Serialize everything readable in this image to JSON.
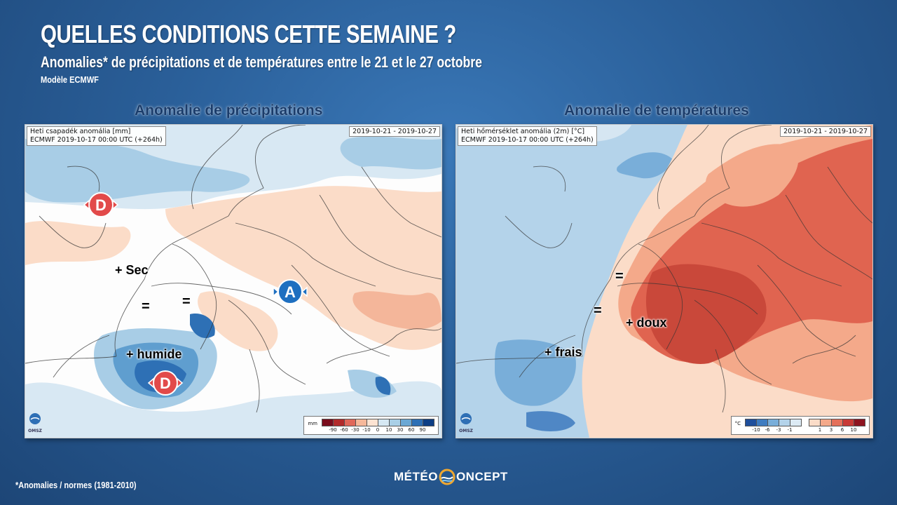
{
  "header": {
    "title": "QUELLES CONDITIONS CETTE SEMAINE ?",
    "subtitle": "Anomalies* de précipitations et de températures entre le 21 et le 27 octobre",
    "model": "Modèle ECMWF"
  },
  "precip_panel": {
    "title": "Anomalie de précipitations",
    "info_line1": "Heti csapadék anomália [mm]",
    "info_line2": "ECMWF 2019-10-17 00:00 UTC (+264h)",
    "dates": "2019-10-21 - 2019-10-27",
    "legend_unit": "mm",
    "legend_values": [
      "-90",
      "-60",
      "-30",
      "-10",
      "0",
      "10",
      "30",
      "60",
      "90"
    ],
    "legend_colors": [
      "#7a0c1c",
      "#b22a2a",
      "#e0685a",
      "#f6b89a",
      "#fde3d2",
      "#d6e8f3",
      "#a9cfe6",
      "#6ca8d4",
      "#2e70b5",
      "#0d3e85"
    ],
    "annotations": {
      "sec": "+ Sec",
      "humide": "+ humide",
      "eq1": "=",
      "eq2": "="
    },
    "pressure_systems": [
      {
        "type": "low",
        "letter": "D",
        "color": "#e24a4a"
      },
      {
        "type": "high",
        "letter": "A",
        "color": "#1e6fc0"
      },
      {
        "type": "low",
        "letter": "D",
        "color": "#e24a4a"
      }
    ],
    "omsz_label": "OMSZ"
  },
  "temp_panel": {
    "title": "Anomalie de températures",
    "info_line1": "Heti hőmérséklet anomália (2m) [°C]",
    "info_line2": "ECMWF 2019-10-17 00:00 UTC (+264h)",
    "dates": "2019-10-21 - 2019-10-27",
    "legend_unit": "°C",
    "legend_values_cold": [
      "-10",
      "-6",
      "-3",
      "-1"
    ],
    "legend_values_warm": [
      "1",
      "3",
      "6",
      "10"
    ],
    "legend_colors_cold": [
      "#1f4f9c",
      "#3f7cc0",
      "#79aed9",
      "#b4d3ea",
      "#dceaf4"
    ],
    "legend_colors_warm": [
      "#fbdcc8",
      "#f4a98a",
      "#e4705a",
      "#c83a36",
      "#8e1420"
    ],
    "annotations": {
      "doux": "+ doux",
      "frais": "+ frais",
      "eq1": "=",
      "eq2": "="
    },
    "omsz_label": "OMSZ"
  },
  "footer": {
    "footnote": "*Anomalies / normes (1981-2010)",
    "logo_left": "MÉTÉO",
    "logo_right": "ONCEPT"
  },
  "colors": {
    "background": "#2a5f99",
    "panel_title": "#1a3c6b",
    "low_pressure": "#e24a4a",
    "high_pressure": "#1e6fc0"
  }
}
